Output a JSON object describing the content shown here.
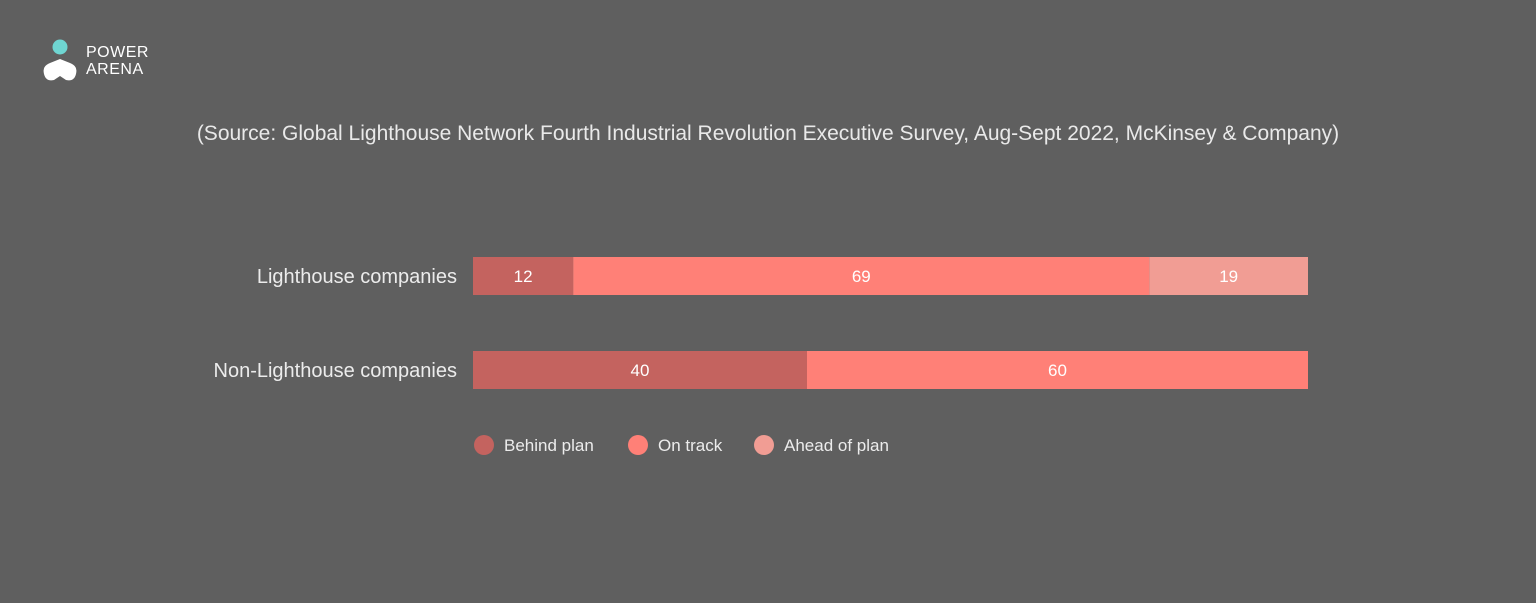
{
  "brand": {
    "line1": "POWER",
    "line2": "ARENA",
    "dot_color": "#6fd6d2"
  },
  "source": "(Source: Global Lighthouse Network Fourth Industrial Revolution Executive Survey, Aug-Sept 2022, McKinsey & Company)",
  "chart_data": {
    "type": "bar",
    "orientation": "horizontal",
    "stacked": true,
    "title": "",
    "categories": [
      "Lighthouse companies",
      "Non-Lighthouse companies"
    ],
    "series": [
      {
        "name": "Behind plan",
        "values": [
          12,
          40
        ],
        "color": "#c4635f"
      },
      {
        "name": "On track",
        "values": [
          69,
          60
        ],
        "color": "#ff8077"
      },
      {
        "name": "Ahead of plan",
        "values": [
          19,
          0
        ],
        "color": "#f19d94"
      }
    ],
    "xlim": [
      0,
      100
    ],
    "grid": false,
    "legend": "bottom"
  }
}
